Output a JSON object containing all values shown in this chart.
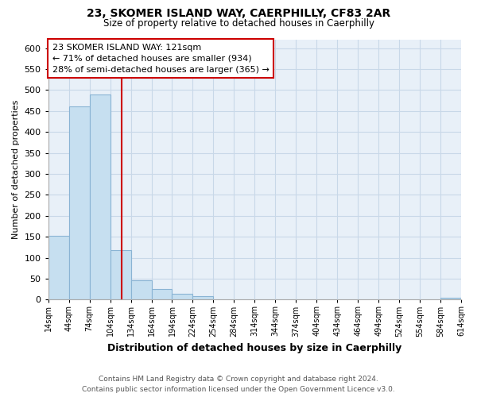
{
  "title": "23, SKOMER ISLAND WAY, CAERPHILLY, CF83 2AR",
  "subtitle": "Size of property relative to detached houses in Caerphilly",
  "xlabel": "Distribution of detached houses by size in Caerphilly",
  "ylabel": "Number of detached properties",
  "bar_color": "#c6dff0",
  "bar_edge_color": "#8ab4d4",
  "vline_x": 121,
  "vline_color": "#cc0000",
  "bin_edges": [
    14,
    44,
    74,
    104,
    134,
    164,
    194,
    224,
    254,
    284,
    314,
    344,
    374,
    404,
    434,
    464,
    494,
    524,
    554,
    584,
    614
  ],
  "bar_heights": [
    153,
    460,
    490,
    118,
    47,
    25,
    13,
    8,
    0,
    0,
    0,
    0,
    0,
    0,
    0,
    0,
    0,
    0,
    0,
    5
  ],
  "ylim": [
    0,
    620
  ],
  "yticks": [
    0,
    50,
    100,
    150,
    200,
    250,
    300,
    350,
    400,
    450,
    500,
    550,
    600
  ],
  "annotation_line1": "23 SKOMER ISLAND WAY: 121sqm",
  "annotation_line2": "← 71% of detached houses are smaller (934)",
  "annotation_line3": "28% of semi-detached houses are larger (365) →",
  "annotation_box_color": "#ffffff",
  "annotation_box_edge": "#cc0000",
  "footer_line1": "Contains HM Land Registry data © Crown copyright and database right 2024.",
  "footer_line2": "Contains public sector information licensed under the Open Government Licence v3.0.",
  "background_color": "#ffffff",
  "plot_bg_color": "#e8f0f8",
  "grid_color": "#c8d8e8"
}
